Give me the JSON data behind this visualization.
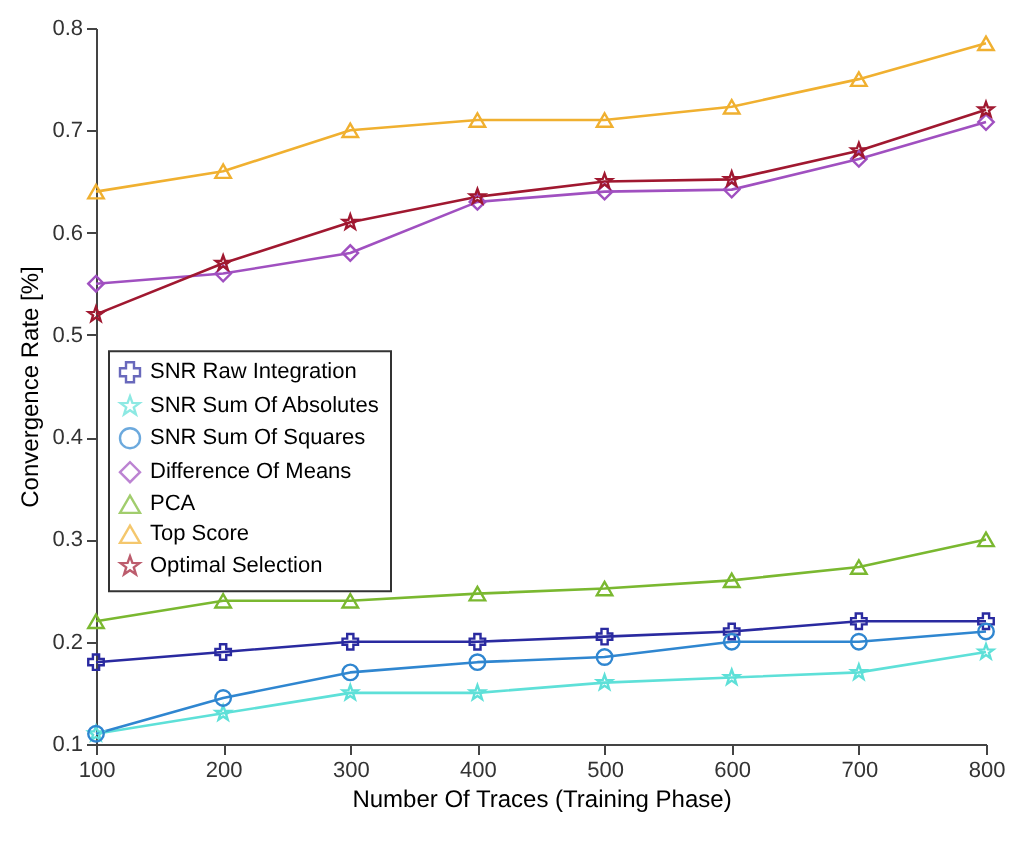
{
  "chart_data": {
    "type": "line",
    "xlabel": "Number Of Traces (Training Phase)",
    "ylabel": "Convergence Rate [%]",
    "x": [
      100,
      200,
      300,
      400,
      500,
      600,
      700,
      800
    ],
    "xlim": [
      100,
      800
    ],
    "xticks": [
      100,
      200,
      300,
      400,
      500,
      600,
      700,
      800
    ],
    "ylim": [
      0.1,
      0.8
    ],
    "yticks": [
      0.1,
      0.2,
      0.3,
      0.4,
      0.5,
      0.6,
      0.7,
      0.8
    ],
    "grid": false,
    "legend": "left",
    "series": [
      {
        "name": "SNR Raw Integration",
        "color": "#2a2aa0",
        "marker": "cross",
        "values": [
          0.18,
          0.19,
          0.2,
          0.2,
          0.205,
          0.21,
          0.22,
          0.22
        ]
      },
      {
        "name": "SNR Sum Of Absolutes",
        "color": "#5ee0d8",
        "marker": "star",
        "values": [
          0.11,
          0.13,
          0.15,
          0.15,
          0.16,
          0.165,
          0.17,
          0.19
        ]
      },
      {
        "name": "SNR Sum Of Squares",
        "color": "#2f86d0",
        "marker": "circle",
        "values": [
          0.11,
          0.145,
          0.17,
          0.18,
          0.185,
          0.2,
          0.2,
          0.21
        ]
      },
      {
        "name": "Difference Of Means",
        "color": "#a050c0",
        "marker": "diamond",
        "values": [
          0.55,
          0.56,
          0.58,
          0.63,
          0.64,
          0.642,
          0.672,
          0.708
        ]
      },
      {
        "name": "PCA",
        "color": "#7ab830",
        "marker": "triangle",
        "values": [
          0.22,
          0.24,
          0.24,
          0.247,
          0.252,
          0.26,
          0.273,
          0.3
        ]
      },
      {
        "name": "Top Score",
        "color": "#f0b030",
        "marker": "triangle",
        "values": [
          0.64,
          0.66,
          0.7,
          0.71,
          0.71,
          0.723,
          0.75,
          0.785
        ]
      },
      {
        "name": "Optimal Selection",
        "color": "#a01830",
        "marker": "star",
        "values": [
          0.52,
          0.57,
          0.61,
          0.635,
          0.65,
          0.652,
          0.68,
          0.72
        ]
      }
    ]
  }
}
